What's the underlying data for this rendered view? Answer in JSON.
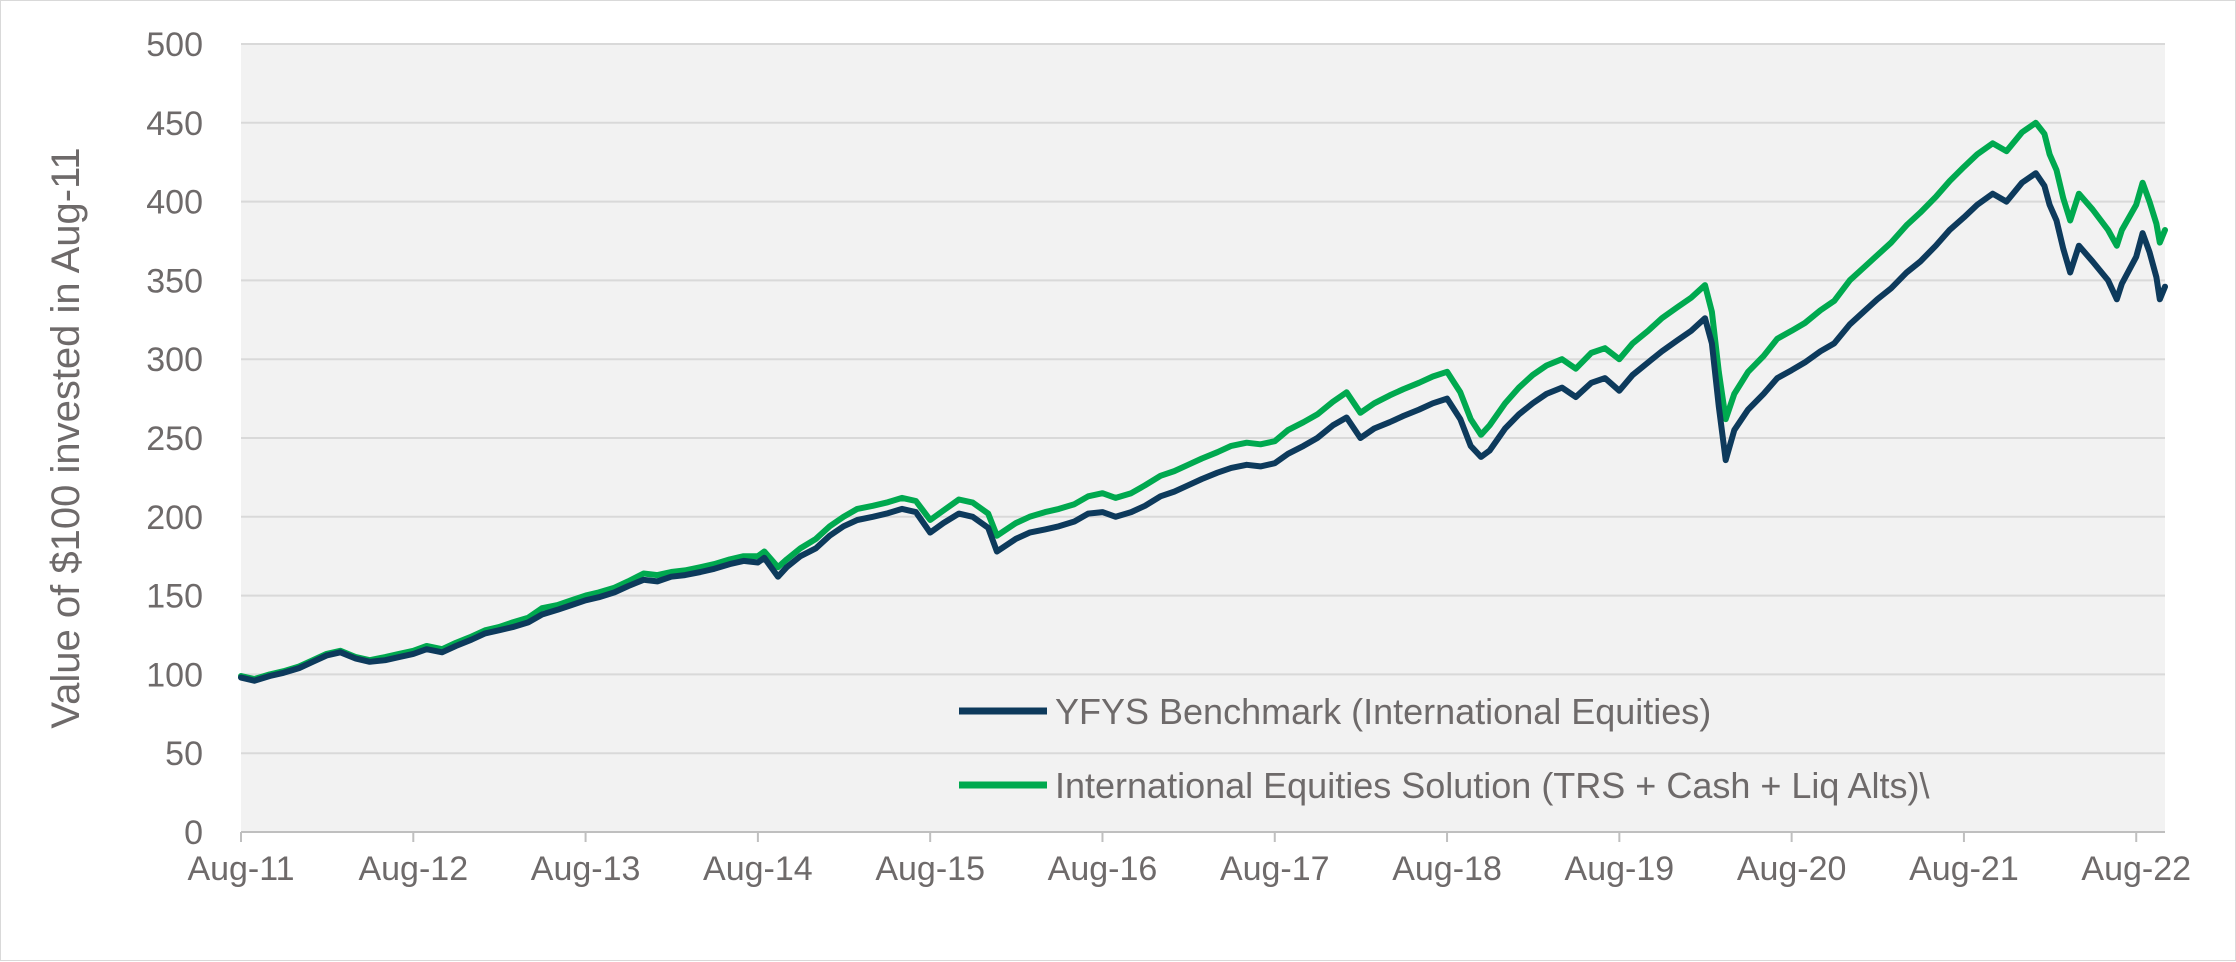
{
  "chart_data": {
    "type": "line",
    "ylabel": "Value of $100 invested in Aug-11",
    "xlabel": "",
    "ylim": [
      0,
      500
    ],
    "yticks": [
      0,
      50,
      100,
      150,
      200,
      250,
      300,
      350,
      400,
      450,
      500
    ],
    "xlim": [
      2011.583,
      2022.75
    ],
    "xticks": [
      {
        "x": 2011.583,
        "label": "Aug-11"
      },
      {
        "x": 2012.583,
        "label": "Aug-12"
      },
      {
        "x": 2013.583,
        "label": "Aug-13"
      },
      {
        "x": 2014.583,
        "label": "Aug-14"
      },
      {
        "x": 2015.583,
        "label": "Aug-15"
      },
      {
        "x": 2016.583,
        "label": "Aug-16"
      },
      {
        "x": 2017.583,
        "label": "Aug-17"
      },
      {
        "x": 2018.583,
        "label": "Aug-18"
      },
      {
        "x": 2019.583,
        "label": "Aug-19"
      },
      {
        "x": 2020.583,
        "label": "Aug-20"
      },
      {
        "x": 2021.583,
        "label": "Aug-21"
      },
      {
        "x": 2022.583,
        "label": "Aug-22"
      }
    ],
    "grid": true,
    "legend_position": "bottom-right",
    "series": [
      {
        "name": "YFYS Benchmark (International Equities)",
        "color": "#0d3a5c",
        "points": [
          [
            2011.583,
            98
          ],
          [
            2011.66,
            96
          ],
          [
            2011.75,
            99
          ],
          [
            2011.83,
            101
          ],
          [
            2011.92,
            104
          ],
          [
            2012.0,
            108
          ],
          [
            2012.08,
            112
          ],
          [
            2012.16,
            114
          ],
          [
            2012.25,
            110
          ],
          [
            2012.33,
            108
          ],
          [
            2012.42,
            109
          ],
          [
            2012.5,
            111
          ],
          [
            2012.583,
            113
          ],
          [
            2012.66,
            116
          ],
          [
            2012.75,
            114
          ],
          [
            2012.83,
            118
          ],
          [
            2012.92,
            122
          ],
          [
            2013.0,
            126
          ],
          [
            2013.08,
            128
          ],
          [
            2013.16,
            130
          ],
          [
            2013.25,
            133
          ],
          [
            2013.33,
            138
          ],
          [
            2013.42,
            141
          ],
          [
            2013.5,
            144
          ],
          [
            2013.583,
            147
          ],
          [
            2013.66,
            149
          ],
          [
            2013.75,
            152
          ],
          [
            2013.83,
            156
          ],
          [
            2013.92,
            160
          ],
          [
            2014.0,
            159
          ],
          [
            2014.08,
            162
          ],
          [
            2014.16,
            163
          ],
          [
            2014.25,
            165
          ],
          [
            2014.33,
            167
          ],
          [
            2014.42,
            170
          ],
          [
            2014.5,
            172
          ],
          [
            2014.583,
            171
          ],
          [
            2014.62,
            174
          ],
          [
            2014.7,
            162
          ],
          [
            2014.75,
            168
          ],
          [
            2014.83,
            175
          ],
          [
            2014.92,
            180
          ],
          [
            2015.0,
            188
          ],
          [
            2015.08,
            194
          ],
          [
            2015.16,
            198
          ],
          [
            2015.25,
            200
          ],
          [
            2015.33,
            202
          ],
          [
            2015.42,
            205
          ],
          [
            2015.5,
            203
          ],
          [
            2015.583,
            190
          ],
          [
            2015.66,
            196
          ],
          [
            2015.75,
            202
          ],
          [
            2015.83,
            200
          ],
          [
            2015.92,
            193
          ],
          [
            2015.97,
            178
          ],
          [
            2016.08,
            186
          ],
          [
            2016.16,
            190
          ],
          [
            2016.25,
            192
          ],
          [
            2016.33,
            194
          ],
          [
            2016.42,
            197
          ],
          [
            2016.5,
            202
          ],
          [
            2016.583,
            203
          ],
          [
            2016.66,
            200
          ],
          [
            2016.75,
            203
          ],
          [
            2016.83,
            207
          ],
          [
            2016.92,
            213
          ],
          [
            2017.0,
            216
          ],
          [
            2017.08,
            220
          ],
          [
            2017.16,
            224
          ],
          [
            2017.25,
            228
          ],
          [
            2017.33,
            231
          ],
          [
            2017.42,
            233
          ],
          [
            2017.5,
            232
          ],
          [
            2017.583,
            234
          ],
          [
            2017.66,
            240
          ],
          [
            2017.75,
            245
          ],
          [
            2017.83,
            250
          ],
          [
            2017.92,
            258
          ],
          [
            2018.0,
            263
          ],
          [
            2018.08,
            250
          ],
          [
            2018.16,
            256
          ],
          [
            2018.25,
            260
          ],
          [
            2018.33,
            264
          ],
          [
            2018.42,
            268
          ],
          [
            2018.5,
            272
          ],
          [
            2018.583,
            275
          ],
          [
            2018.66,
            262
          ],
          [
            2018.72,
            245
          ],
          [
            2018.78,
            238
          ],
          [
            2018.83,
            242
          ],
          [
            2018.92,
            256
          ],
          [
            2019.0,
            265
          ],
          [
            2019.08,
            272
          ],
          [
            2019.16,
            278
          ],
          [
            2019.25,
            282
          ],
          [
            2019.33,
            276
          ],
          [
            2019.42,
            285
          ],
          [
            2019.5,
            288
          ],
          [
            2019.583,
            280
          ],
          [
            2019.66,
            290
          ],
          [
            2019.75,
            298
          ],
          [
            2019.83,
            305
          ],
          [
            2019.92,
            312
          ],
          [
            2020.0,
            318
          ],
          [
            2020.08,
            326
          ],
          [
            2020.12,
            310
          ],
          [
            2020.16,
            270
          ],
          [
            2020.2,
            236
          ],
          [
            2020.25,
            255
          ],
          [
            2020.33,
            268
          ],
          [
            2020.42,
            278
          ],
          [
            2020.5,
            288
          ],
          [
            2020.583,
            293
          ],
          [
            2020.66,
            298
          ],
          [
            2020.75,
            305
          ],
          [
            2020.83,
            310
          ],
          [
            2020.92,
            322
          ],
          [
            2021.0,
            330
          ],
          [
            2021.08,
            338
          ],
          [
            2021.16,
            345
          ],
          [
            2021.25,
            355
          ],
          [
            2021.33,
            362
          ],
          [
            2021.42,
            372
          ],
          [
            2021.5,
            382
          ],
          [
            2021.583,
            390
          ],
          [
            2021.66,
            398
          ],
          [
            2021.75,
            405
          ],
          [
            2021.83,
            400
          ],
          [
            2021.92,
            412
          ],
          [
            2022.0,
            418
          ],
          [
            2022.05,
            410
          ],
          [
            2022.08,
            398
          ],
          [
            2022.12,
            388
          ],
          [
            2022.16,
            370
          ],
          [
            2022.2,
            355
          ],
          [
            2022.25,
            372
          ],
          [
            2022.33,
            362
          ],
          [
            2022.42,
            350
          ],
          [
            2022.47,
            338
          ],
          [
            2022.5,
            348
          ],
          [
            2022.583,
            365
          ],
          [
            2022.62,
            380
          ],
          [
            2022.66,
            368
          ],
          [
            2022.7,
            352
          ],
          [
            2022.72,
            338
          ],
          [
            2022.75,
            346
          ]
        ]
      },
      {
        "name": "International Equities Solution (TRS + Cash + Liq Alts)\\",
        "color": "#00a94f",
        "points": [
          [
            2011.583,
            99
          ],
          [
            2011.66,
            97
          ],
          [
            2011.75,
            100
          ],
          [
            2011.83,
            102
          ],
          [
            2011.92,
            105
          ],
          [
            2012.0,
            109
          ],
          [
            2012.08,
            113
          ],
          [
            2012.16,
            115
          ],
          [
            2012.25,
            111
          ],
          [
            2012.33,
            109
          ],
          [
            2012.42,
            111
          ],
          [
            2012.5,
            113
          ],
          [
            2012.583,
            115
          ],
          [
            2012.66,
            118
          ],
          [
            2012.75,
            116
          ],
          [
            2012.83,
            120
          ],
          [
            2012.92,
            124
          ],
          [
            2013.0,
            128
          ],
          [
            2013.08,
            130
          ],
          [
            2013.16,
            133
          ],
          [
            2013.25,
            136
          ],
          [
            2013.33,
            142
          ],
          [
            2013.42,
            144
          ],
          [
            2013.5,
            147
          ],
          [
            2013.583,
            150
          ],
          [
            2013.66,
            152
          ],
          [
            2013.75,
            155
          ],
          [
            2013.83,
            159
          ],
          [
            2013.92,
            164
          ],
          [
            2014.0,
            163
          ],
          [
            2014.08,
            165
          ],
          [
            2014.16,
            166
          ],
          [
            2014.25,
            168
          ],
          [
            2014.33,
            170
          ],
          [
            2014.42,
            173
          ],
          [
            2014.5,
            175
          ],
          [
            2014.583,
            175
          ],
          [
            2014.62,
            178
          ],
          [
            2014.7,
            168
          ],
          [
            2014.75,
            173
          ],
          [
            2014.83,
            180
          ],
          [
            2014.92,
            186
          ],
          [
            2015.0,
            194
          ],
          [
            2015.08,
            200
          ],
          [
            2015.16,
            205
          ],
          [
            2015.25,
            207
          ],
          [
            2015.33,
            209
          ],
          [
            2015.42,
            212
          ],
          [
            2015.5,
            210
          ],
          [
            2015.583,
            198
          ],
          [
            2015.66,
            204
          ],
          [
            2015.75,
            211
          ],
          [
            2015.83,
            209
          ],
          [
            2015.92,
            202
          ],
          [
            2015.97,
            188
          ],
          [
            2016.08,
            196
          ],
          [
            2016.16,
            200
          ],
          [
            2016.25,
            203
          ],
          [
            2016.33,
            205
          ],
          [
            2016.42,
            208
          ],
          [
            2016.5,
            213
          ],
          [
            2016.583,
            215
          ],
          [
            2016.66,
            212
          ],
          [
            2016.75,
            215
          ],
          [
            2016.83,
            220
          ],
          [
            2016.92,
            226
          ],
          [
            2017.0,
            229
          ],
          [
            2017.08,
            233
          ],
          [
            2017.16,
            237
          ],
          [
            2017.25,
            241
          ],
          [
            2017.33,
            245
          ],
          [
            2017.42,
            247
          ],
          [
            2017.5,
            246
          ],
          [
            2017.583,
            248
          ],
          [
            2017.66,
            255
          ],
          [
            2017.75,
            260
          ],
          [
            2017.83,
            265
          ],
          [
            2017.92,
            273
          ],
          [
            2018.0,
            279
          ],
          [
            2018.08,
            266
          ],
          [
            2018.16,
            272
          ],
          [
            2018.25,
            277
          ],
          [
            2018.33,
            281
          ],
          [
            2018.42,
            285
          ],
          [
            2018.5,
            289
          ],
          [
            2018.583,
            292
          ],
          [
            2018.66,
            279
          ],
          [
            2018.72,
            262
          ],
          [
            2018.78,
            252
          ],
          [
            2018.83,
            258
          ],
          [
            2018.92,
            272
          ],
          [
            2019.0,
            282
          ],
          [
            2019.08,
            290
          ],
          [
            2019.16,
            296
          ],
          [
            2019.25,
            300
          ],
          [
            2019.33,
            294
          ],
          [
            2019.42,
            304
          ],
          [
            2019.5,
            307
          ],
          [
            2019.583,
            300
          ],
          [
            2019.66,
            310
          ],
          [
            2019.75,
            318
          ],
          [
            2019.83,
            326
          ],
          [
            2019.92,
            333
          ],
          [
            2020.0,
            339
          ],
          [
            2020.08,
            347
          ],
          [
            2020.12,
            330
          ],
          [
            2020.16,
            292
          ],
          [
            2020.2,
            262
          ],
          [
            2020.25,
            278
          ],
          [
            2020.33,
            292
          ],
          [
            2020.42,
            302
          ],
          [
            2020.5,
            313
          ],
          [
            2020.583,
            318
          ],
          [
            2020.66,
            323
          ],
          [
            2020.75,
            331
          ],
          [
            2020.83,
            337
          ],
          [
            2020.92,
            350
          ],
          [
            2021.0,
            358
          ],
          [
            2021.08,
            366
          ],
          [
            2021.16,
            374
          ],
          [
            2021.25,
            385
          ],
          [
            2021.33,
            393
          ],
          [
            2021.42,
            403
          ],
          [
            2021.5,
            413
          ],
          [
            2021.583,
            422
          ],
          [
            2021.66,
            430
          ],
          [
            2021.75,
            437
          ],
          [
            2021.83,
            432
          ],
          [
            2021.92,
            444
          ],
          [
            2022.0,
            450
          ],
          [
            2022.05,
            443
          ],
          [
            2022.08,
            430
          ],
          [
            2022.12,
            420
          ],
          [
            2022.16,
            402
          ],
          [
            2022.2,
            388
          ],
          [
            2022.25,
            405
          ],
          [
            2022.33,
            395
          ],
          [
            2022.42,
            382
          ],
          [
            2022.47,
            372
          ],
          [
            2022.5,
            382
          ],
          [
            2022.583,
            398
          ],
          [
            2022.62,
            412
          ],
          [
            2022.66,
            400
          ],
          [
            2022.7,
            386
          ],
          [
            2022.72,
            374
          ],
          [
            2022.75,
            382
          ]
        ]
      }
    ]
  },
  "colors": {
    "plot_background": "#f2f2f2",
    "gridline": "#d9d9d9",
    "axis_line": "#bfbfbf",
    "text": "#6e6a6a"
  }
}
